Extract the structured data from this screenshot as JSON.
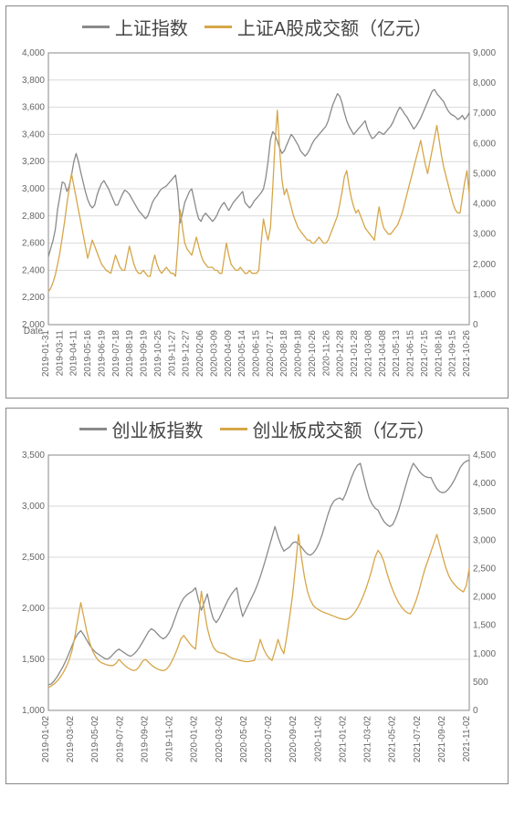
{
  "panels": [
    {
      "id": "sse",
      "type": "line",
      "legend": [
        {
          "label": "上证指数",
          "color": "#8a8a8a"
        },
        {
          "label": "上证A股成交额（亿元）",
          "color": "#d6a648"
        }
      ],
      "background_color": "#ffffff",
      "grid_color": "#d9d9d9",
      "border_color": "#888888",
      "label_fontsize": 10,
      "legend_fontsize": 20,
      "line_width": 1.3,
      "x": {
        "label_leader": "Date",
        "ticks": [
          "2019-01-31",
          "2019-03-11",
          "2019-04-11",
          "2019-05-16",
          "2019-06-19",
          "2019-07-18",
          "2019-08-19",
          "2019-09-19",
          "2019-10-25",
          "2019-11-27",
          "2019-12-27",
          "2020-02-06",
          "2020-03-09",
          "2020-04-09",
          "2020-05-14",
          "2020-06-15",
          "2020-07-17",
          "2020-08-18",
          "2020-09-18",
          "2020-10-26",
          "2020-11-26",
          "2020-12-28",
          "2021-01-28",
          "2021-03-08",
          "2021-04-08",
          "2021-05-13",
          "2021-06-15",
          "2021-07-15",
          "2021-08-16",
          "2021-09-15",
          "2021-10-26"
        ]
      },
      "y_left": {
        "min": 2000,
        "max": 4000,
        "step": 200,
        "ticks": [
          "2,000",
          "2,200",
          "2,400",
          "2,600",
          "2,800",
          "3,000",
          "3,200",
          "3,400",
          "3,600",
          "3,800",
          "4,000"
        ]
      },
      "y_right": {
        "min": 0,
        "max": 9000,
        "step": 1000,
        "ticks": [
          "0",
          "1,000",
          "2,000",
          "3,000",
          "4,000",
          "5,000",
          "6,000",
          "7,000",
          "8,000",
          "9,000"
        ]
      },
      "series": [
        {
          "name": "index",
          "axis": "left",
          "color": "#8a8a8a",
          "values": [
            2500,
            2560,
            2620,
            2700,
            2850,
            2950,
            3050,
            3040,
            2980,
            3020,
            3100,
            3200,
            3260,
            3200,
            3120,
            3050,
            2980,
            2920,
            2880,
            2860,
            2880,
            2950,
            3000,
            3040,
            3060,
            3030,
            3000,
            2960,
            2920,
            2880,
            2880,
            2920,
            2960,
            2990,
            2980,
            2960,
            2930,
            2900,
            2870,
            2840,
            2820,
            2800,
            2780,
            2800,
            2850,
            2900,
            2930,
            2950,
            2980,
            3000,
            3010,
            3020,
            3040,
            3060,
            3080,
            3100,
            2980,
            2750,
            2820,
            2900,
            2940,
            2980,
            3000,
            2920,
            2840,
            2780,
            2760,
            2800,
            2820,
            2800,
            2780,
            2760,
            2780,
            2810,
            2850,
            2880,
            2900,
            2870,
            2840,
            2870,
            2900,
            2920,
            2940,
            2960,
            2980,
            2900,
            2880,
            2860,
            2880,
            2910,
            2930,
            2950,
            2970,
            3000,
            3080,
            3200,
            3360,
            3420,
            3400,
            3350,
            3300,
            3260,
            3280,
            3320,
            3360,
            3400,
            3380,
            3350,
            3320,
            3280,
            3260,
            3240,
            3260,
            3290,
            3330,
            3360,
            3380,
            3400,
            3420,
            3440,
            3460,
            3500,
            3560,
            3620,
            3660,
            3700,
            3680,
            3630,
            3560,
            3500,
            3460,
            3430,
            3400,
            3420,
            3440,
            3460,
            3480,
            3500,
            3440,
            3400,
            3370,
            3380,
            3400,
            3420,
            3410,
            3400,
            3420,
            3440,
            3460,
            3490,
            3530,
            3570,
            3600,
            3580,
            3550,
            3530,
            3500,
            3470,
            3440,
            3460,
            3490,
            3520,
            3560,
            3600,
            3640,
            3680,
            3720,
            3730,
            3700,
            3680,
            3660,
            3640,
            3600,
            3570,
            3550,
            3540,
            3530,
            3510,
            3520,
            3540,
            3510,
            3530,
            3560
          ]
        },
        {
          "name": "turnover",
          "axis": "right",
          "color": "#d6a648",
          "values": [
            1100,
            1200,
            1400,
            1650,
            2000,
            2400,
            2900,
            3400,
            4000,
            4500,
            5000,
            4600,
            4200,
            3800,
            3400,
            3000,
            2600,
            2200,
            2500,
            2800,
            2600,
            2400,
            2200,
            2000,
            1900,
            1800,
            1750,
            1700,
            2000,
            2300,
            2100,
            1900,
            1800,
            1800,
            2200,
            2600,
            2300,
            2000,
            1800,
            1700,
            1700,
            1800,
            1700,
            1600,
            1600,
            2000,
            2300,
            2000,
            1800,
            1700,
            1800,
            1900,
            1800,
            1700,
            1700,
            1600,
            2600,
            3800,
            3200,
            2700,
            2500,
            2400,
            2300,
            2600,
            2900,
            2600,
            2300,
            2100,
            2000,
            1900,
            1900,
            1900,
            1800,
            1800,
            1700,
            1700,
            2200,
            2700,
            2300,
            2000,
            1900,
            1800,
            1800,
            1900,
            1800,
            1700,
            1700,
            1800,
            1700,
            1700,
            1700,
            1800,
            2700,
            3500,
            3100,
            2800,
            3200,
            4500,
            6000,
            7100,
            5800,
            4800,
            4300,
            4500,
            4200,
            3900,
            3600,
            3400,
            3200,
            3100,
            3000,
            2900,
            2800,
            2800,
            2700,
            2700,
            2800,
            2900,
            2800,
            2700,
            2700,
            2800,
            3000,
            3200,
            3400,
            3600,
            4000,
            4400,
            4900,
            5100,
            4600,
            4200,
            3900,
            3700,
            3800,
            3600,
            3400,
            3200,
            3100,
            3000,
            2900,
            2800,
            3400,
            3900,
            3500,
            3200,
            3100,
            3000,
            3000,
            3100,
            3200,
            3300,
            3500,
            3700,
            4000,
            4300,
            4600,
            4900,
            5200,
            5500,
            5800,
            6100,
            5700,
            5300,
            5000,
            5400,
            5800,
            6200,
            6600,
            6100,
            5600,
            5200,
            4900,
            4600,
            4300,
            4000,
            3800,
            3700,
            3700,
            4200,
            4700,
            5100,
            4300
          ]
        }
      ]
    },
    {
      "id": "chinext",
      "type": "line",
      "legend": [
        {
          "label": "创业板指数",
          "color": "#8a8a8a"
        },
        {
          "label": "创业板成交额（亿元）",
          "color": "#d6a648"
        }
      ],
      "background_color": "#ffffff",
      "grid_color": "#d9d9d9",
      "border_color": "#888888",
      "label_fontsize": 10,
      "legend_fontsize": 20,
      "line_width": 1.3,
      "x": {
        "ticks": [
          "2019-01-02",
          "2019-03-02",
          "2019-05-02",
          "2019-07-02",
          "2019-09-02",
          "2019-11-02",
          "2020-01-02",
          "2020-03-02",
          "2020-05-02",
          "2020-07-02",
          "2020-09-02",
          "2020-11-02",
          "2021-01-02",
          "2021-03-02",
          "2021-05-02",
          "2021-07-02",
          "2021-09-02",
          "2021-11-02"
        ]
      },
      "y_left": {
        "min": 1000,
        "max": 3500,
        "step": 500,
        "ticks": [
          "1,000",
          "1,500",
          "2,000",
          "2,500",
          "3,000",
          "3,500"
        ]
      },
      "y_right": {
        "min": 0,
        "max": 4500,
        "step": 500,
        "ticks": [
          "0",
          "500",
          "1,000",
          "1,500",
          "2,000",
          "2,500",
          "3,000",
          "3,500",
          "4,000",
          "4,500"
        ]
      },
      "series": [
        {
          "name": "index",
          "axis": "left",
          "color": "#8a8a8a",
          "values": [
            1250,
            1260,
            1290,
            1330,
            1380,
            1430,
            1490,
            1560,
            1630,
            1700,
            1750,
            1780,
            1740,
            1690,
            1640,
            1600,
            1570,
            1550,
            1530,
            1510,
            1500,
            1520,
            1550,
            1580,
            1600,
            1580,
            1560,
            1540,
            1530,
            1550,
            1580,
            1620,
            1670,
            1720,
            1770,
            1800,
            1780,
            1750,
            1720,
            1700,
            1720,
            1760,
            1820,
            1900,
            1980,
            2050,
            2100,
            2130,
            2150,
            2170,
            2200,
            2080,
            1980,
            2060,
            2140,
            2000,
            1900,
            1860,
            1900,
            1960,
            2020,
            2080,
            2130,
            2170,
            2200,
            2040,
            1920,
            1980,
            2040,
            2100,
            2160,
            2230,
            2310,
            2400,
            2500,
            2600,
            2700,
            2800,
            2700,
            2620,
            2560,
            2580,
            2600,
            2640,
            2650,
            2630,
            2600,
            2560,
            2530,
            2520,
            2540,
            2580,
            2640,
            2720,
            2820,
            2920,
            3000,
            3050,
            3070,
            3080,
            3060,
            3120,
            3200,
            3280,
            3350,
            3400,
            3420,
            3300,
            3180,
            3080,
            3020,
            2980,
            2960,
            2900,
            2850,
            2820,
            2800,
            2820,
            2880,
            2960,
            3060,
            3160,
            3260,
            3350,
            3420,
            3380,
            3340,
            3310,
            3290,
            3280,
            3280,
            3220,
            3170,
            3140,
            3130,
            3140,
            3170,
            3210,
            3260,
            3320,
            3380,
            3420,
            3440,
            3450
          ]
        },
        {
          "name": "turnover",
          "axis": "right",
          "color": "#d6a648",
          "values": [
            400,
            430,
            470,
            520,
            580,
            660,
            760,
            880,
            1050,
            1300,
            1600,
            1900,
            1650,
            1400,
            1200,
            1050,
            950,
            880,
            840,
            820,
            800,
            790,
            790,
            830,
            900,
            840,
            790,
            750,
            720,
            700,
            720,
            780,
            870,
            900,
            850,
            800,
            760,
            730,
            710,
            700,
            720,
            780,
            870,
            980,
            1110,
            1260,
            1320,
            1250,
            1180,
            1120,
            1080,
            1600,
            2100,
            1750,
            1450,
            1250,
            1120,
            1050,
            1020,
            1010,
            1000,
            960,
            930,
            910,
            900,
            880,
            870,
            860,
            860,
            870,
            880,
            1060,
            1250,
            1100,
            990,
            920,
            880,
            1050,
            1250,
            1100,
            1000,
            1300,
            1650,
            2050,
            2550,
            3100,
            2700,
            2350,
            2100,
            1950,
            1850,
            1800,
            1770,
            1740,
            1720,
            1700,
            1680,
            1660,
            1640,
            1620,
            1610,
            1600,
            1620,
            1660,
            1720,
            1800,
            1900,
            2020,
            2160,
            2320,
            2500,
            2700,
            2820,
            2750,
            2620,
            2430,
            2260,
            2120,
            2000,
            1900,
            1820,
            1760,
            1720,
            1700,
            1810,
            1950,
            2120,
            2320,
            2500,
            2650,
            2800,
            2950,
            3100,
            2900,
            2700,
            2520,
            2380,
            2280,
            2220,
            2160,
            2120,
            2090,
            2200,
            2500
          ]
        }
      ]
    }
  ]
}
